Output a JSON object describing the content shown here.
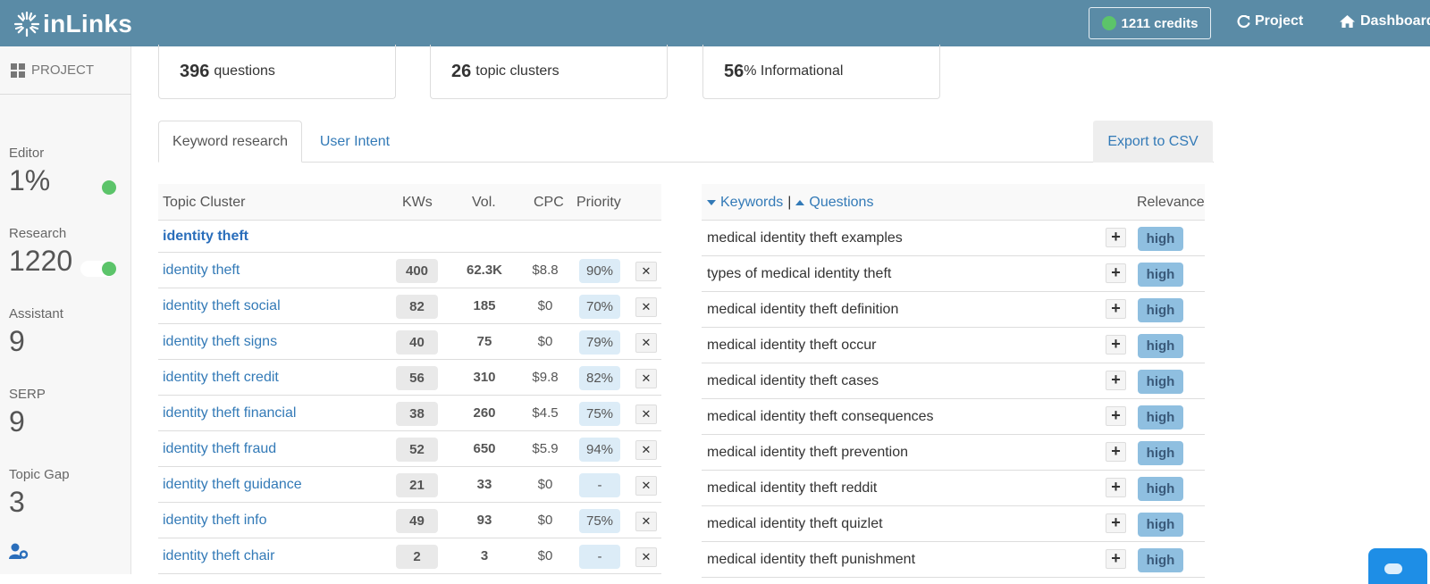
{
  "header": {
    "logo_text": "inLinks",
    "credits_label": "1211 credits",
    "project_label": "Project",
    "dashboard_label": "Dashboard"
  },
  "sidebar": {
    "project_label": "PROJECT",
    "metrics": [
      {
        "label": "Editor",
        "value": "1%"
      },
      {
        "label": "Research",
        "value": "1220"
      },
      {
        "label": "Assistant",
        "value": "9"
      },
      {
        "label": "SERP",
        "value": "9"
      },
      {
        "label": "Topic Gap",
        "value": "3"
      }
    ],
    "status_color": "#5cc46a"
  },
  "stats": [
    {
      "number": "396",
      "unit": "questions"
    },
    {
      "number": "26",
      "unit": "topic clusters"
    },
    {
      "number": "56",
      "unit": "% Informational"
    }
  ],
  "tabs": {
    "keyword_research": "Keyword research",
    "user_intent": "User Intent",
    "export": "Export to CSV"
  },
  "cluster_table": {
    "headers": {
      "topic": "Topic Cluster",
      "kws": "KWs",
      "vol": "Vol.",
      "cpc": "CPC",
      "priority": "Priority"
    },
    "group": "identity theft",
    "rows": [
      {
        "name": "identity theft",
        "kws": "400",
        "vol": "62.3K",
        "cpc": "$8.8",
        "priority": "90%"
      },
      {
        "name": "identity theft social",
        "kws": "82",
        "vol": "185",
        "cpc": "$0",
        "priority": "70%"
      },
      {
        "name": "identity theft signs",
        "kws": "40",
        "vol": "75",
        "cpc": "$0",
        "priority": "79%"
      },
      {
        "name": "identity theft credit",
        "kws": "56",
        "vol": "310",
        "cpc": "$9.8",
        "priority": "82%"
      },
      {
        "name": "identity theft financial",
        "kws": "38",
        "vol": "260",
        "cpc": "$4.5",
        "priority": "75%"
      },
      {
        "name": "identity theft fraud",
        "kws": "52",
        "vol": "650",
        "cpc": "$5.9",
        "priority": "94%"
      },
      {
        "name": "identity theft guidance",
        "kws": "21",
        "vol": "33",
        "cpc": "$0",
        "priority": "-"
      },
      {
        "name": "identity theft info",
        "kws": "49",
        "vol": "93",
        "cpc": "$0",
        "priority": "75%"
      },
      {
        "name": "identity theft chair",
        "kws": "2",
        "vol": "3",
        "cpc": "$0",
        "priority": "-"
      }
    ],
    "delete_glyph": "✕"
  },
  "question_table": {
    "keywords_label": "Keywords",
    "separator": "|",
    "questions_label": "Questions",
    "relevance_label": "Relevance",
    "add_glyph": "+",
    "rows": [
      {
        "text": "medical identity theft examples",
        "relevance": "high"
      },
      {
        "text": "types of medical identity theft",
        "relevance": "high"
      },
      {
        "text": "medical identity theft definition",
        "relevance": "high"
      },
      {
        "text": "medical identity theft occur",
        "relevance": "high"
      },
      {
        "text": "medical identity theft cases",
        "relevance": "high"
      },
      {
        "text": "medical identity theft consequences",
        "relevance": "high"
      },
      {
        "text": "medical identity theft prevention",
        "relevance": "high"
      },
      {
        "text": "medical identity theft reddit",
        "relevance": "high"
      },
      {
        "text": "medical identity theft quizlet",
        "relevance": "high"
      },
      {
        "text": "medical identity theft punishment",
        "relevance": "high"
      }
    ]
  },
  "colors": {
    "topbar": "#5a8ba6",
    "link": "#337ab7",
    "relevance_badge": "#8fbfe0",
    "priority_badge": "#dcecf7"
  }
}
